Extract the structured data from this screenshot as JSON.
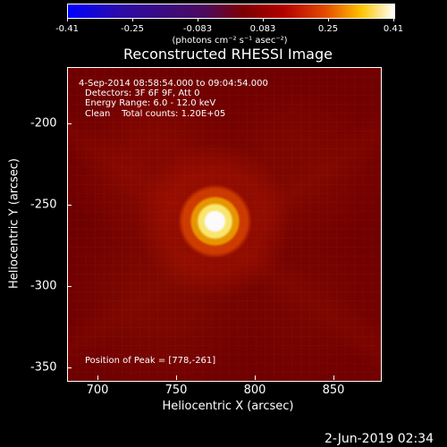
{
  "colorbar": {
    "ticks": [
      "-0.41",
      "-0.25",
      "-0.083",
      "0.083",
      "0.25",
      "0.41"
    ],
    "units": "(photons cm⁻² s⁻¹ asec⁻²)"
  },
  "plot": {
    "title": "Reconstructed RHESSI Image",
    "info": {
      "line1": "4-Sep-2014 08:58:54.000 to 09:04:54.000",
      "line2": "Detectors: 3F 6F 9F, Att 0",
      "line3": "Energy Range: 6.0 - 12.0 keV",
      "line4": "Clean    Total counts: 1.20E+05"
    },
    "peak": "Position of Peak = [778,-261]",
    "x_ticks": [
      "700",
      "750",
      "800",
      "850"
    ],
    "y_ticks": [
      "-200",
      "-250",
      "-300",
      "-350"
    ],
    "x_label": "Heliocentric X (arcsec)",
    "y_label": "Heliocentric Y (arcsec)"
  },
  "footer": {
    "timestamp": "2-Jun-2019 02:34"
  }
}
